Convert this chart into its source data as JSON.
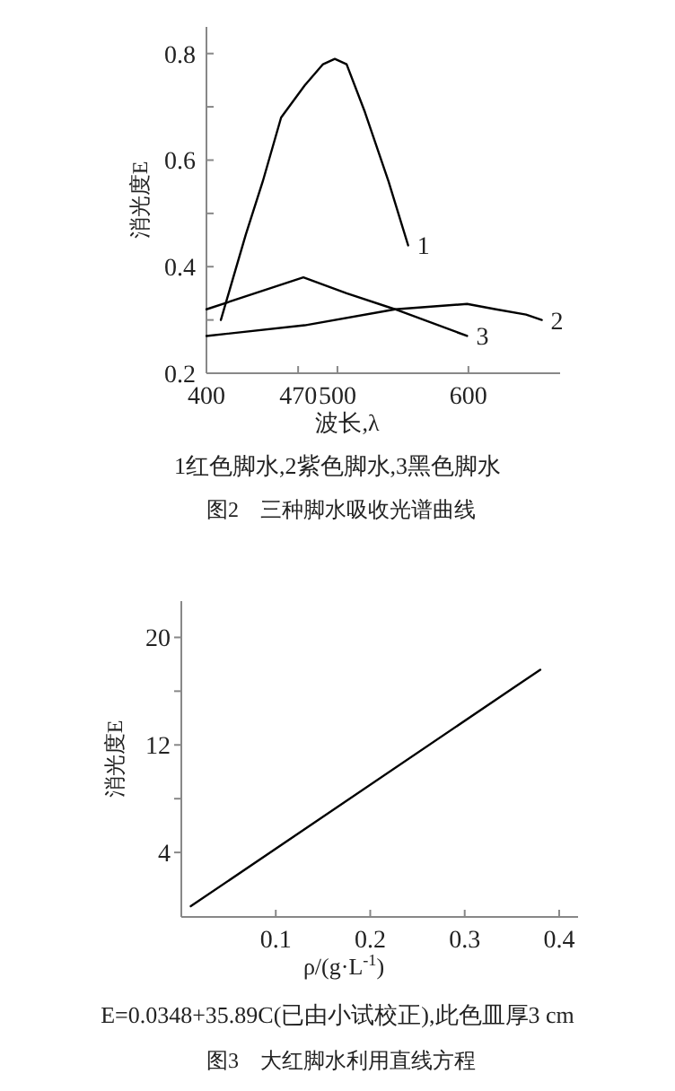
{
  "chart_data": [
    {
      "type": "line",
      "title": "图2　三种脚水吸收光谱曲线",
      "xlabel": "波长,λ",
      "ylabel": "消光度E",
      "annotations": [
        "1红色脚水,2紫色脚水,3黑色脚水"
      ],
      "xlim": [
        400,
        670
      ],
      "ylim": [
        0.2,
        0.85
      ],
      "xticks": [
        400,
        470,
        500,
        600
      ],
      "yticks": [
        0.2,
        {
          "value": 0.3,
          "label": null
        },
        0.4,
        {
          "value": 0.5,
          "label": null
        },
        0.6,
        {
          "value": 0.7,
          "label": null
        },
        0.8
      ],
      "series": [
        {
          "name": "1",
          "color": "#000000",
          "x": [
            411,
            430,
            443,
            457,
            475,
            489,
            498,
            507,
            521,
            539,
            554
          ],
          "values": [
            0.3,
            0.46,
            0.56,
            0.68,
            0.74,
            0.78,
            0.79,
            0.78,
            0.69,
            0.56,
            0.44
          ]
        },
        {
          "name": "2",
          "color": "#000000",
          "x": [
            400,
            475,
            544,
            599,
            621,
            644,
            656
          ],
          "values": [
            0.27,
            0.29,
            0.32,
            0.33,
            0.32,
            0.31,
            0.3
          ]
        },
        {
          "name": "3",
          "color": "#000000",
          "x": [
            400,
            474,
            507,
            544,
            599
          ],
          "values": [
            0.32,
            0.38,
            0.35,
            0.32,
            0.27
          ]
        }
      ]
    },
    {
      "type": "line",
      "title": "图3　大红脚水利用直线方程",
      "xlabel": "ρ/(g·L$^{-1}$)",
      "ylabel": "消光度E",
      "annotations": [
        "E=0.0348+35.89C(已由小试校正),此色皿厚3 cm"
      ],
      "xlim": [
        0,
        0.42
      ],
      "ylim": [
        -0.8,
        22.7
      ],
      "xticks": [
        0.1,
        0.2,
        0.3,
        0.4
      ],
      "yticks": [
        4,
        {
          "value": 8,
          "label": null
        },
        12,
        {
          "value": 16,
          "label": null
        },
        20
      ],
      "series": [
        {
          "color": "#000000",
          "x": [
            0.01,
            0.38
          ],
          "values": [
            0.0,
            17.6
          ]
        }
      ]
    }
  ]
}
